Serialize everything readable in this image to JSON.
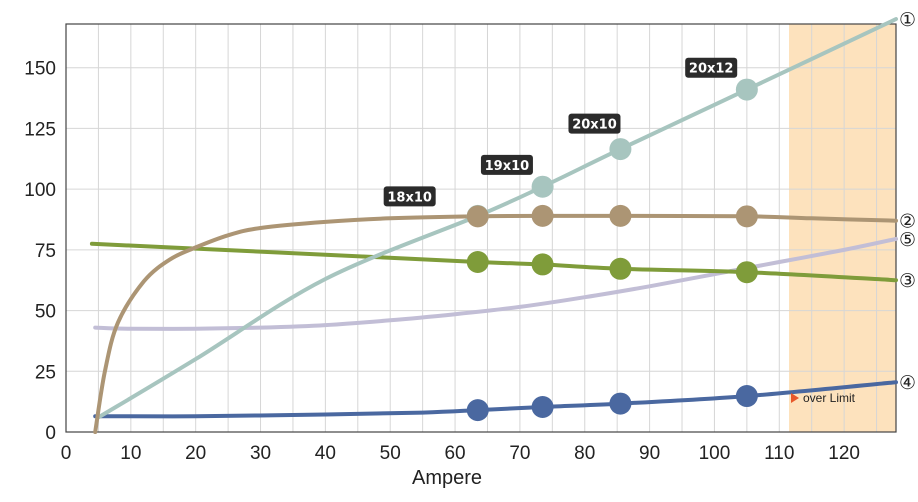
{
  "chart_data": {
    "type": "line",
    "title": "",
    "xlabel": "Ampere",
    "ylabel": "",
    "xlim": [
      0,
      128
    ],
    "ylim": [
      0,
      168
    ],
    "x_ticks": [
      0,
      10,
      20,
      30,
      40,
      50,
      60,
      70,
      80,
      90,
      100,
      110,
      120
    ],
    "y_ticks": [
      0,
      25,
      50,
      75,
      100,
      125,
      150
    ],
    "grid": true,
    "over_limit": {
      "from_x": 111.5,
      "label": "over Limit",
      "color": "#fde2bd"
    },
    "series": [
      {
        "name": "①",
        "color": "#a7c5bf",
        "x": [
          5,
          20,
          40,
          63.5,
          73.5,
          85.5,
          105,
          128
        ],
        "y": [
          6,
          30,
          63,
          89,
          101,
          116.5,
          141,
          170
        ]
      },
      {
        "name": "②",
        "color": "#ac9574",
        "x": [
          4.5,
          6,
          8,
          12,
          16,
          20,
          25,
          30,
          40,
          50,
          63.5,
          73.5,
          85.5,
          105,
          115,
          128
        ],
        "y": [
          0,
          25,
          45,
          62,
          71,
          76,
          81,
          84,
          86.5,
          88,
          88.8,
          89,
          89,
          88.8,
          88,
          87
        ]
      },
      {
        "name": "③",
        "color": "#7f9c3a",
        "x": [
          4,
          20,
          40,
          63.5,
          73.5,
          85.5,
          105,
          128
        ],
        "y": [
          77.5,
          75.5,
          73,
          70,
          69,
          67.2,
          65.8,
          62.5
        ]
      },
      {
        "name": "④",
        "color": "#4a68a0",
        "x": [
          4.5,
          20,
          40,
          55,
          63.5,
          73.5,
          85.5,
          105,
          128
        ],
        "y": [
          6.5,
          6.5,
          7.2,
          8,
          9,
          10.3,
          11.7,
          14.8,
          20.5
        ]
      },
      {
        "name": "⑤",
        "color": "#c2bed6",
        "x": [
          4.5,
          10,
          20,
          30,
          40,
          50,
          60,
          70,
          80,
          90,
          100,
          110,
          120,
          128
        ],
        "y": [
          43,
          42.5,
          42.5,
          43,
          44,
          46,
          48.5,
          51.5,
          55.5,
          60,
          65,
          70,
          75,
          79.5
        ]
      }
    ],
    "markers": [
      {
        "series": "①",
        "points": [
          [
            63.5,
            89
          ],
          [
            73.5,
            101
          ],
          [
            85.5,
            116.5
          ],
          [
            105,
            141
          ]
        ]
      },
      {
        "series": "②",
        "points": [
          [
            63.5,
            88.8
          ],
          [
            73.5,
            89
          ],
          [
            85.5,
            89
          ],
          [
            105,
            88.8
          ]
        ]
      },
      {
        "series": "③",
        "points": [
          [
            63.5,
            70
          ],
          [
            73.5,
            69
          ],
          [
            85.5,
            67.2
          ],
          [
            105,
            65.8
          ]
        ]
      },
      {
        "series": "④",
        "points": [
          [
            63.5,
            9
          ],
          [
            73.5,
            10.3
          ],
          [
            85.5,
            11.7
          ],
          [
            105,
            14.8
          ]
        ]
      }
    ],
    "annotations": [
      {
        "text": "18x10",
        "x": 53,
        "y": 97
      },
      {
        "text": "19x10",
        "x": 68,
        "y": 110
      },
      {
        "text": "20x10",
        "x": 81.5,
        "y": 127
      },
      {
        "text": "20x12",
        "x": 99.5,
        "y": 150
      }
    ],
    "series_labels": [
      {
        "text": "①",
        "y": 170
      },
      {
        "text": "②",
        "y": 87
      },
      {
        "text": "⑤",
        "y": 79.5
      },
      {
        "text": "③",
        "y": 62.5
      },
      {
        "text": "④",
        "y": 20.5
      }
    ]
  }
}
